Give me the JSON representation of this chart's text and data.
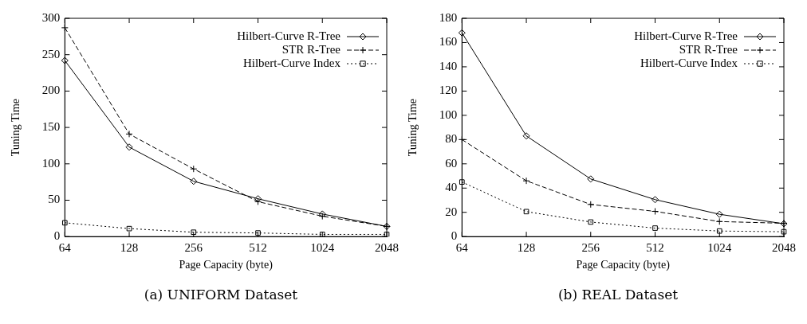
{
  "chart_data": [
    {
      "type": "line",
      "xlabel": "Page Capacity (byte)",
      "ylabel": "Tuning Time",
      "categories": [
        "64",
        "128",
        "256",
        "512",
        "1024",
        "2048"
      ],
      "ylim": [
        0,
        300
      ],
      "yticks": [
        0,
        50,
        100,
        150,
        200,
        250,
        300
      ],
      "grid": false,
      "legend": "top right",
      "annotations": [
        "(a) UNIFORM Dataset"
      ],
      "series": [
        {
          "name": "Hilbert-Curve R-Tree",
          "color": "#000000",
          "marker": "diamond",
          "line_style": "solid",
          "values": [
            242,
            123,
            76,
            52,
            31,
            14
          ]
        },
        {
          "name": "STR R-Tree",
          "color": "#000000",
          "marker": "cross",
          "line_style": "dashed",
          "values": [
            287,
            141,
            93,
            48,
            28,
            14
          ]
        },
        {
          "name": "Hilbert-Curve Index",
          "color": "#000000",
          "marker": "square",
          "line_style": "dotted",
          "values": [
            19,
            11,
            6,
            5,
            3,
            3
          ]
        }
      ]
    },
    {
      "type": "line",
      "xlabel": "Page Capacity (byte)",
      "ylabel": "Tuning Time",
      "categories": [
        "64",
        "128",
        "256",
        "512",
        "1024",
        "2048"
      ],
      "ylim": [
        0,
        180
      ],
      "yticks": [
        0,
        20,
        40,
        60,
        80,
        100,
        120,
        140,
        160,
        180
      ],
      "grid": false,
      "legend": "top right",
      "annotations": [
        "(b) REAL Dataset"
      ],
      "series": [
        {
          "name": "Hilbert-Curve R-Tree",
          "color": "#000000",
          "marker": "diamond",
          "line_style": "solid",
          "values": [
            168,
            83,
            47.5,
            30.5,
            18.4,
            10.6
          ]
        },
        {
          "name": "STR R-Tree",
          "color": "#000000",
          "marker": "cross",
          "line_style": "dashed",
          "values": [
            80,
            46,
            26.5,
            20.8,
            12.4,
            11
          ]
        },
        {
          "name": "Hilbert-Curve Index",
          "color": "#000000",
          "marker": "square",
          "line_style": "dotted",
          "values": [
            45,
            20.6,
            12,
            7,
            4.6,
            4
          ]
        }
      ]
    }
  ]
}
